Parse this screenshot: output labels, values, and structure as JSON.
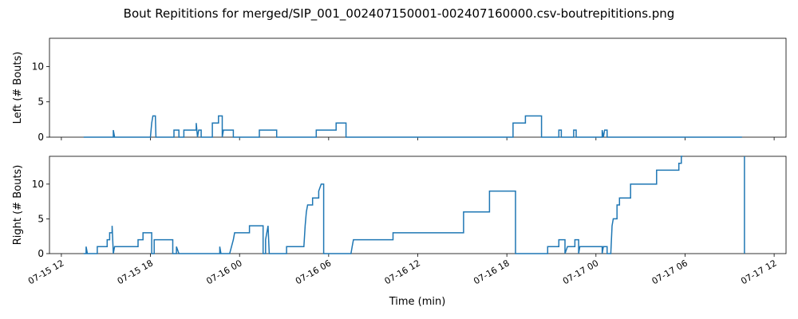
{
  "chart_data": {
    "type": "line",
    "title": "Bout Repititions for merged/SIP_001_002407150001-002407160000.csv-boutrepititions.png",
    "xlabel": "Time (min)",
    "x_ticks": [
      "07-15 12",
      "07-15 18",
      "07-16 00",
      "07-16 06",
      "07-16 12",
      "07-16 18",
      "07-17 00",
      "07-17 06",
      "07-17 12"
    ],
    "xlim": [
      "07-15 11:12",
      "07-17 12:48"
    ],
    "line_color": "#1f77b4",
    "grid": false,
    "subplots": [
      {
        "name": "left",
        "ylabel": "Left (# Bouts)",
        "ylim": [
          0,
          14
        ],
        "y_ticks": [
          "0",
          "5",
          "10"
        ],
        "points": [
          [
            "07-15 13:30",
            0
          ],
          [
            "07-15 15:30",
            0
          ],
          [
            "07-15 15:30",
            1
          ],
          [
            "07-15 15:35",
            0
          ],
          [
            "07-15 18:00",
            0
          ],
          [
            "07-15 18:05",
            2
          ],
          [
            "07-15 18:10",
            3
          ],
          [
            "07-15 18:20",
            3
          ],
          [
            "07-15 18:22",
            0
          ],
          [
            "07-15 19:35",
            0
          ],
          [
            "07-15 19:35",
            1
          ],
          [
            "07-15 19:55",
            1
          ],
          [
            "07-15 19:55",
            0
          ],
          [
            "07-15 20:15",
            0
          ],
          [
            "07-15 20:15",
            1
          ],
          [
            "07-15 21:05",
            1
          ],
          [
            "07-15 21:05",
            2
          ],
          [
            "07-15 21:10",
            0
          ],
          [
            "07-15 21:15",
            1
          ],
          [
            "07-15 21:25",
            1
          ],
          [
            "07-15 21:25",
            0
          ],
          [
            "07-15 22:10",
            0
          ],
          [
            "07-15 22:10",
            2
          ],
          [
            "07-15 22:35",
            2
          ],
          [
            "07-15 22:35",
            3
          ],
          [
            "07-15 22:50",
            3
          ],
          [
            "07-15 22:50",
            0
          ],
          [
            "07-15 22:55",
            1
          ],
          [
            "07-15 23:35",
            1
          ],
          [
            "07-15 23:35",
            0
          ],
          [
            "07-16 01:20",
            0
          ],
          [
            "07-16 01:20",
            1
          ],
          [
            "07-16 02:30",
            1
          ],
          [
            "07-16 02:30",
            0
          ],
          [
            "07-16 05:10",
            0
          ],
          [
            "07-16 05:10",
            1
          ],
          [
            "07-16 06:30",
            1
          ],
          [
            "07-16 06:30",
            2
          ],
          [
            "07-16 07:10",
            2
          ],
          [
            "07-16 07:10",
            0
          ],
          [
            "07-16 18:25",
            0
          ],
          [
            "07-16 18:25",
            2
          ],
          [
            "07-16 19:15",
            2
          ],
          [
            "07-16 19:15",
            3
          ],
          [
            "07-16 20:20",
            3
          ],
          [
            "07-16 20:20",
            0
          ],
          [
            "07-16 21:30",
            0
          ],
          [
            "07-16 21:30",
            1
          ],
          [
            "07-16 21:40",
            1
          ],
          [
            "07-16 21:40",
            0
          ],
          [
            "07-16 22:30",
            0
          ],
          [
            "07-16 22:30",
            1
          ],
          [
            "07-16 22:40",
            1
          ],
          [
            "07-16 22:40",
            0
          ],
          [
            "07-17 00:25",
            0
          ],
          [
            "07-17 00:25",
            1
          ],
          [
            "07-17 00:30",
            0
          ],
          [
            "07-17 00:35",
            1
          ],
          [
            "07-17 00:45",
            1
          ],
          [
            "07-17 00:45",
            0
          ],
          [
            "07-17 09:50",
            0
          ]
        ]
      },
      {
        "name": "right",
        "ylabel": "Right (# Bouts)",
        "ylim": [
          0,
          14
        ],
        "y_ticks": [
          "0",
          "5",
          "10"
        ],
        "points": [
          [
            "07-15 13:30",
            0
          ],
          [
            "07-15 13:40",
            0
          ],
          [
            "07-15 13:40",
            1
          ],
          [
            "07-15 13:45",
            0
          ],
          [
            "07-15 14:25",
            0
          ],
          [
            "07-15 14:25",
            1
          ],
          [
            "07-15 15:05",
            1
          ],
          [
            "07-15 15:05",
            2
          ],
          [
            "07-15 15:15",
            2
          ],
          [
            "07-15 15:15",
            3
          ],
          [
            "07-15 15:25",
            3
          ],
          [
            "07-15 15:25",
            4
          ],
          [
            "07-15 15:30",
            0
          ],
          [
            "07-15 15:35",
            1
          ],
          [
            "07-15 17:10",
            1
          ],
          [
            "07-15 17:10",
            2
          ],
          [
            "07-15 17:30",
            2
          ],
          [
            "07-15 17:30",
            3
          ],
          [
            "07-15 18:05",
            3
          ],
          [
            "07-15 18:05",
            0
          ],
          [
            "07-15 18:15",
            0
          ],
          [
            "07-15 18:15",
            2
          ],
          [
            "07-15 19:30",
            2
          ],
          [
            "07-15 19:30",
            0
          ],
          [
            "07-15 19:45",
            0
          ],
          [
            "07-15 19:45",
            1
          ],
          [
            "07-15 19:55",
            0
          ],
          [
            "07-15 22:40",
            0
          ],
          [
            "07-15 22:40",
            1
          ],
          [
            "07-15 22:45",
            0
          ],
          [
            "07-15 23:20",
            0
          ],
          [
            "07-15 23:35",
            2
          ],
          [
            "07-15 23:40",
            3
          ],
          [
            "07-16 00:40",
            3
          ],
          [
            "07-16 00:40",
            4
          ],
          [
            "07-16 01:35",
            4
          ],
          [
            "07-16 01:35",
            0
          ],
          [
            "07-16 01:45",
            0
          ],
          [
            "07-16 01:45",
            2
          ],
          [
            "07-16 01:55",
            4
          ],
          [
            "07-16 02:00",
            0
          ],
          [
            "07-16 03:10",
            0
          ],
          [
            "07-16 03:10",
            1
          ],
          [
            "07-16 04:20",
            1
          ],
          [
            "07-16 04:25",
            4
          ],
          [
            "07-16 04:30",
            6
          ],
          [
            "07-16 04:35",
            7
          ],
          [
            "07-16 04:55",
            7
          ],
          [
            "07-16 04:55",
            8
          ],
          [
            "07-16 05:20",
            8
          ],
          [
            "07-16 05:20",
            9
          ],
          [
            "07-16 05:30",
            10
          ],
          [
            "07-16 05:40",
            10
          ],
          [
            "07-16 05:40",
            0
          ],
          [
            "07-16 07:30",
            0
          ],
          [
            "07-16 07:35",
            1
          ],
          [
            "07-16 07:40",
            2
          ],
          [
            "07-16 10:20",
            2
          ],
          [
            "07-16 10:20",
            3
          ],
          [
            "07-16 15:05",
            3
          ],
          [
            "07-16 15:05",
            6
          ],
          [
            "07-16 16:50",
            6
          ],
          [
            "07-16 16:50",
            9
          ],
          [
            "07-16 18:35",
            9
          ],
          [
            "07-16 18:35",
            0
          ],
          [
            "07-16 20:45",
            0
          ],
          [
            "07-16 20:45",
            1
          ],
          [
            "07-16 21:30",
            1
          ],
          [
            "07-16 21:30",
            2
          ],
          [
            "07-16 21:55",
            2
          ],
          [
            "07-16 21:55",
            0
          ],
          [
            "07-16 22:05",
            1
          ],
          [
            "07-16 22:35",
            1
          ],
          [
            "07-16 22:35",
            2
          ],
          [
            "07-16 22:50",
            2
          ],
          [
            "07-16 22:50",
            0
          ],
          [
            "07-16 22:55",
            1
          ],
          [
            "07-17 00:25",
            1
          ],
          [
            "07-17 00:25",
            0
          ],
          [
            "07-17 00:30",
            1
          ],
          [
            "07-17 00:45",
            1
          ],
          [
            "07-17 00:45",
            0
          ],
          [
            "07-17 01:00",
            0
          ],
          [
            "07-17 01:05",
            4
          ],
          [
            "07-17 01:10",
            5
          ],
          [
            "07-17 01:25",
            5
          ],
          [
            "07-17 01:25",
            7
          ],
          [
            "07-17 01:35",
            7
          ],
          [
            "07-17 01:35",
            8
          ],
          [
            "07-17 02:20",
            8
          ],
          [
            "07-17 02:20",
            10
          ],
          [
            "07-17 04:05",
            10
          ],
          [
            "07-17 04:05",
            12
          ],
          [
            "07-17 05:35",
            12
          ],
          [
            "07-17 05:35",
            13
          ],
          [
            "07-17 05:45",
            13
          ],
          [
            "07-17 05:45",
            14
          ],
          [
            "07-17 05:50",
            14
          ]
        ],
        "extra_segment": [
          [
            "07-17 10:00",
            0
          ],
          [
            "07-17 10:00",
            14
          ]
        ]
      }
    ]
  }
}
